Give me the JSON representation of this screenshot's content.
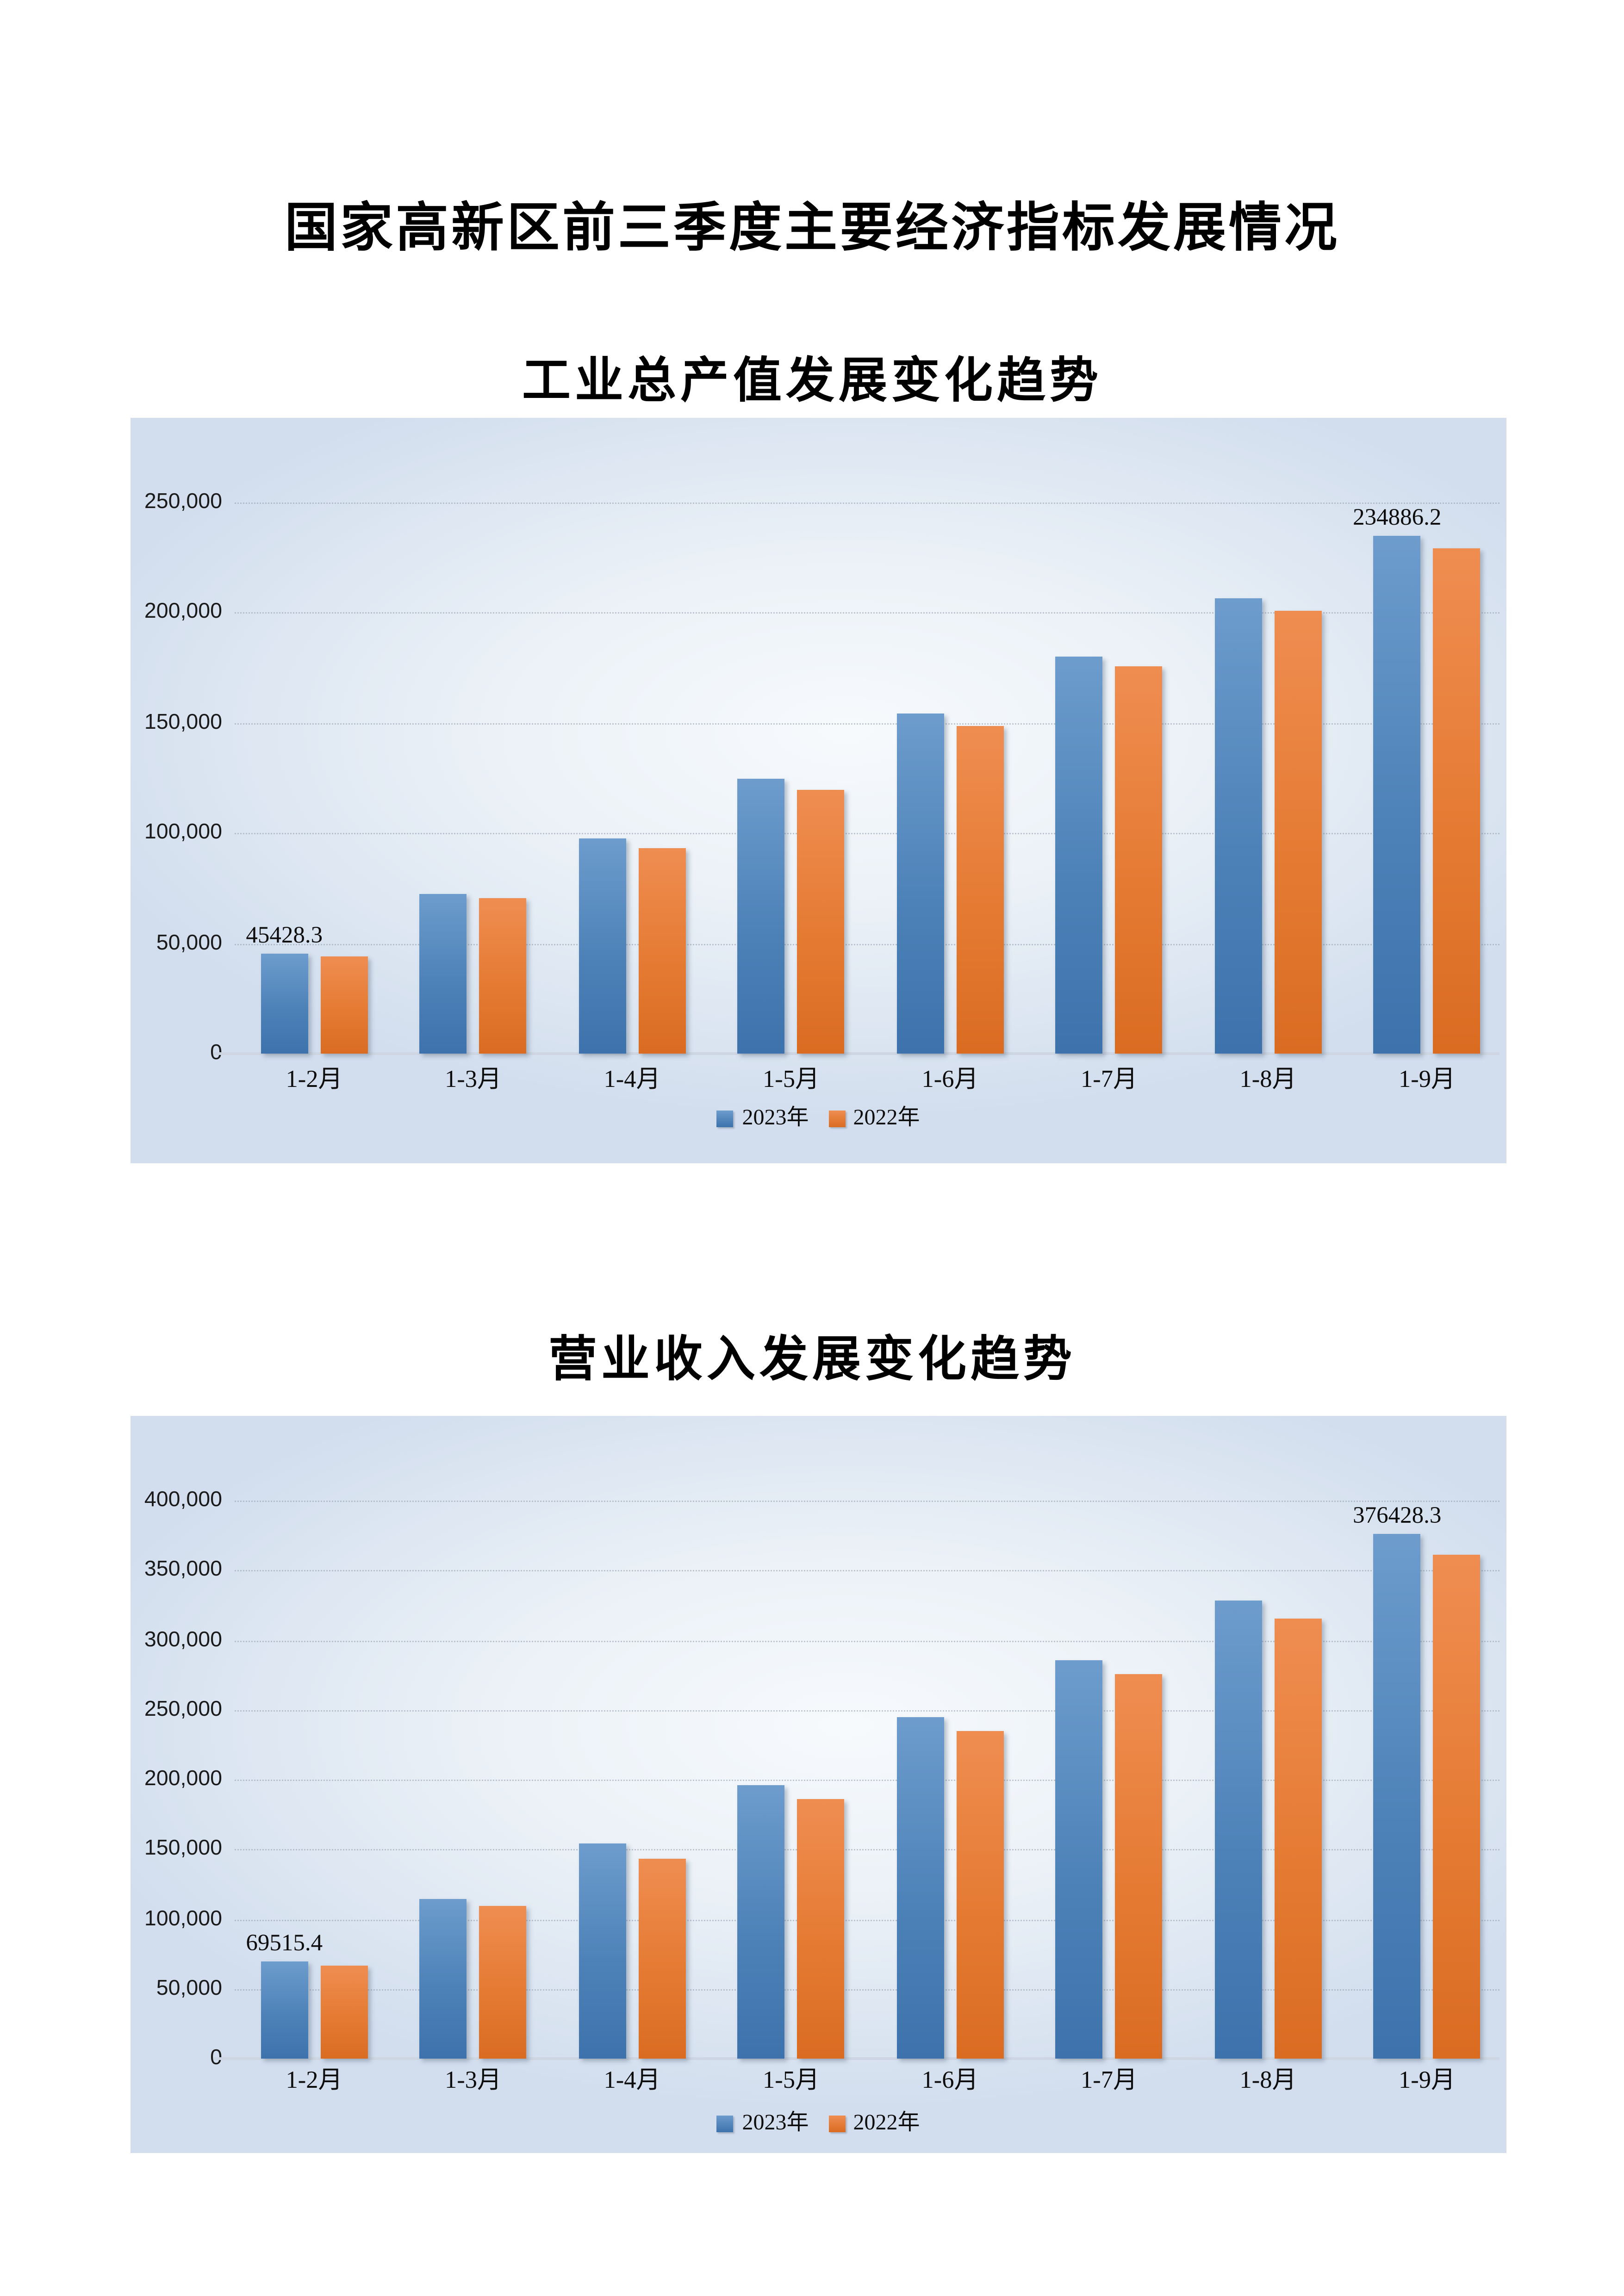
{
  "page": {
    "title": "国家高新区前三季度主要经济指标发展情况",
    "background": "#ffffff"
  },
  "chart_data": [
    {
      "type": "bar",
      "title": "工业总产值发展变化趋势",
      "categories": [
        "1-2月",
        "1-3月",
        "1-4月",
        "1-5月",
        "1-6月",
        "1-7月",
        "1-8月",
        "1-9月"
      ],
      "series": [
        {
          "name": "2023年",
          "color": "#4e82b8",
          "color_top": "#6d9ccd",
          "color_bottom": "#3d72ac",
          "values": [
            45428.3,
            72700,
            97400,
            124700,
            154400,
            180300,
            206400,
            234886.2
          ],
          "point_labels": {
            "0": "45428.3",
            "7": "234886.2"
          }
        },
        {
          "name": "2022年",
          "color": "#ed7d31",
          "color_top": "#ef8d51",
          "color_bottom": "#da6c22",
          "values": [
            44000,
            70300,
            93500,
            119400,
            148900,
            175500,
            201000,
            229200
          ],
          "point_labels": {}
        }
      ],
      "ylim": [
        0,
        250000
      ],
      "ytick_step": 50000,
      "ytick_labels": [
        "250,000",
        "200,000",
        "150,000",
        "100,000",
        "50,000",
        "0"
      ],
      "grid": true,
      "legend_position": "bottom"
    },
    {
      "type": "bar",
      "title": "营业收入发展变化趋势",
      "categories": [
        "1-2月",
        "1-3月",
        "1-4月",
        "1-5月",
        "1-6月",
        "1-7月",
        "1-8月",
        "1-9月"
      ],
      "series": [
        {
          "name": "2023年",
          "color": "#4e82b8",
          "color_top": "#6d9ccd",
          "color_bottom": "#3d72ac",
          "values": [
            69515.4,
            114500,
            153800,
            196200,
            245000,
            286000,
            328500,
            376428.3
          ],
          "point_labels": {
            "0": "69515.4",
            "7": "376428.3"
          }
        },
        {
          "name": "2022年",
          "color": "#ed7d31",
          "color_top": "#ef8d51",
          "color_bottom": "#da6c22",
          "values": [
            66800,
            109300,
            143600,
            186100,
            235200,
            275300,
            315800,
            361000
          ],
          "point_labels": {}
        }
      ],
      "ylim": [
        0,
        400000
      ],
      "ytick_step": 50000,
      "ytick_labels": [
        "400,000",
        "350,000",
        "300,000",
        "250,000",
        "200,000",
        "150,000",
        "100,000",
        "50,000",
        "0"
      ],
      "grid": true,
      "legend_position": "bottom"
    }
  ]
}
